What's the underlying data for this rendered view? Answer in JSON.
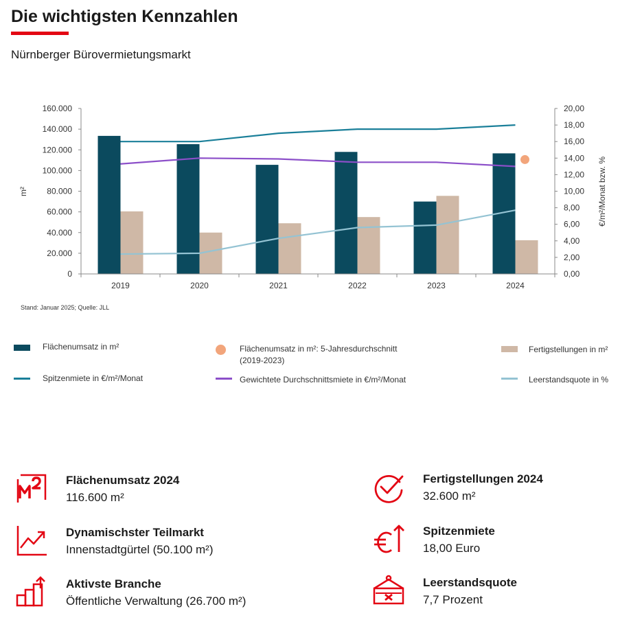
{
  "header": {
    "title": "Die wichtigsten Kennzahlen",
    "subtitle": "Nürnberger Bürovermietungsmarkt"
  },
  "source": "Stand: Januar 2025; Quelle: JLL",
  "colors": {
    "accent": "#e30613",
    "flaechenumsatz": "#0b4a5e",
    "fertigstellungen": "#cfb8a6",
    "spitzenmiete": "#1a7f99",
    "durchschnittsmiete": "#8c4fc9",
    "leerstand": "#94c3d3",
    "avg_dot": "#f2a57b"
  },
  "chart_data": {
    "type": "bar",
    "categories": [
      "2019",
      "2020",
      "2021",
      "2022",
      "2023",
      "2024"
    ],
    "ylabel": "m²",
    "y2label": "€/m²/Monat bzw. %",
    "ylim": [
      0,
      160000
    ],
    "y2lim": [
      0,
      20
    ],
    "yticks": [
      "0",
      "20.000",
      "40.000",
      "60.000",
      "80.000",
      "100.000",
      "120.000",
      "140.000",
      "160.000"
    ],
    "y2ticks": [
      "0,00",
      "2,00",
      "4,00",
      "6,00",
      "8,00",
      "10,00",
      "12,00",
      "14,00",
      "16,00",
      "18,00",
      "20,00"
    ],
    "bar_series": [
      {
        "name": "Flächenumsatz in m²",
        "values": [
          133500,
          125500,
          105500,
          118000,
          70000,
          116600
        ]
      },
      {
        "name": "Fertigstellungen in m²",
        "values": [
          60500,
          40000,
          49000,
          55000,
          75500,
          32600
        ]
      }
    ],
    "line_series": [
      {
        "name": "Spitzenmiete in €/m²/Monat",
        "axis": "right",
        "values": [
          16.0,
          16.0,
          17.0,
          17.5,
          17.5,
          18.0
        ]
      },
      {
        "name": "Gewichtete Durchschnittsmiete  in €/m²/Monat",
        "axis": "right",
        "values": [
          13.3,
          14.0,
          13.9,
          13.5,
          13.5,
          13.0
        ]
      },
      {
        "name": "Leerstandsquote in %",
        "axis": "right",
        "values": [
          2.4,
          2.5,
          4.3,
          5.6,
          5.9,
          7.7
        ]
      }
    ],
    "point_series": [
      {
        "name": "Flächenumsatz in m²: 5-Jahresdurchschnitt (2019-2023)",
        "axis": "left",
        "x": "2024",
        "value": 110600
      }
    ],
    "grid": false,
    "legend_position": "bottom"
  },
  "legend": [
    {
      "label": "Flächenumsatz in m²",
      "kind": "bar",
      "color": "#0b4a5e"
    },
    {
      "label": "Flächenumsatz in m²: 5-Jahresdurchschnitt",
      "label2": "(2019-2023)",
      "kind": "dot",
      "color": "#f2a57b"
    },
    {
      "label": "Fertigstellungen in m²",
      "kind": "bar",
      "color": "#cfb8a6"
    },
    {
      "label": "Spitzenmiete in €/m²/Monat",
      "kind": "line",
      "color": "#1a7f99"
    },
    {
      "label": "Gewichtete Durchschnittsmiete  in €/m²/Monat",
      "kind": "line",
      "color": "#8c4fc9"
    },
    {
      "label": "Leerstandsquote in %",
      "kind": "line",
      "color": "#94c3d3"
    }
  ],
  "kpis": [
    {
      "icon": "m2-icon",
      "label": "Flächenumsatz 2024",
      "value": "116.600 m²"
    },
    {
      "icon": "trend-chart-icon",
      "label": "Dynamischster Teilmarkt",
      "value": "Innenstadtgürtel (50.100 m²)"
    },
    {
      "icon": "bar-growth-icon",
      "label": "Aktivste Branche",
      "value": "Öffentliche Verwaltung (26.700 m²)"
    },
    {
      "icon": "checkmark-circle-icon",
      "label": "Fertigstellungen 2024",
      "value": "32.600 m²"
    },
    {
      "icon": "euro-up-icon",
      "label": "Spitzenmiete",
      "value": "18,00 Euro"
    },
    {
      "icon": "vacancy-sign-icon",
      "label": "Leerstandsquote",
      "value": "7,7 Prozent"
    }
  ]
}
